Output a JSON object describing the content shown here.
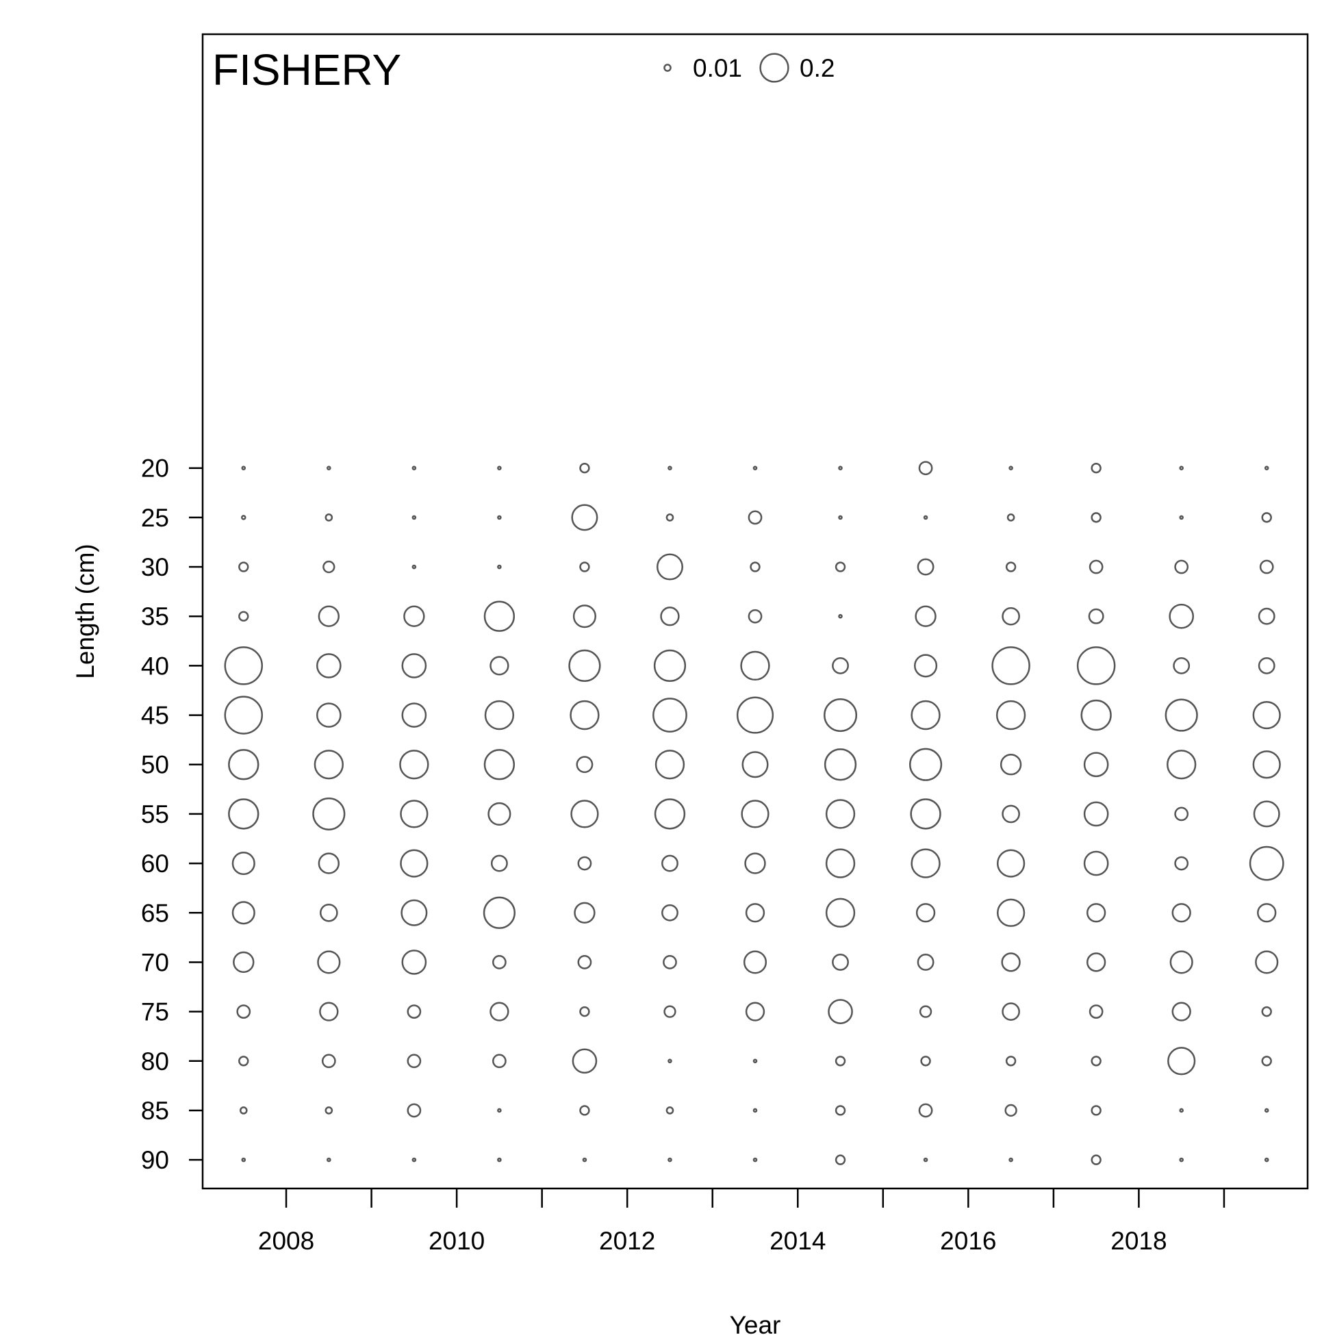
{
  "chart_data": {
    "type": "scatter",
    "panel_label": "FISHERY",
    "xlabel": "Year",
    "ylabel": "Length (cm)",
    "xlim": [
      2007.02,
      2019.98
    ],
    "ylim": [
      -92.9,
      23.9
    ],
    "x_ticks": [
      2008,
      2010,
      2012,
      2014,
      2016,
      2018
    ],
    "x_minor_ticks": [
      2009,
      2011,
      2013,
      2015,
      2017,
      2019
    ],
    "y_ticks": [
      20,
      25,
      30,
      35,
      40,
      45,
      50,
      55,
      60,
      65,
      70,
      75,
      80,
      85,
      90
    ],
    "grid": false,
    "legend": {
      "position": "top-center",
      "entries": [
        {
          "label": "0.01",
          "value": 0.01
        },
        {
          "label": "0.2",
          "value": 0.2
        }
      ]
    },
    "colors": {
      "bubble": "#555555",
      "axis": "#000000"
    },
    "years": [
      2007.5,
      2008.5,
      2009.5,
      2010.5,
      2011.5,
      2012.5,
      2013.5,
      2014.5,
      2015.5,
      2016.5,
      2017.5,
      2018.5,
      2019.5
    ],
    "lengths": [
      20,
      25,
      30,
      35,
      40,
      45,
      50,
      55,
      60,
      65,
      70,
      75,
      80,
      85,
      90
    ],
    "proportions": [
      [
        0.002,
        0.003,
        0.02,
        0.02,
        0.35,
        0.35,
        0.22,
        0.22,
        0.12,
        0.12,
        0.1,
        0.04,
        0.02,
        0.01,
        0.002
      ],
      [
        0.002,
        0.01,
        0.03,
        0.1,
        0.14,
        0.14,
        0.2,
        0.25,
        0.1,
        0.07,
        0.12,
        0.08,
        0.04,
        0.01,
        0.002
      ],
      [
        0.002,
        0.002,
        0.002,
        0.1,
        0.14,
        0.14,
        0.2,
        0.18,
        0.18,
        0.16,
        0.14,
        0.04,
        0.04,
        0.04,
        0.002
      ],
      [
        0.002,
        0.002,
        0.002,
        0.22,
        0.08,
        0.2,
        0.22,
        0.12,
        0.06,
        0.24,
        0.04,
        0.08,
        0.04,
        0.002,
        0.002
      ],
      [
        0.02,
        0.16,
        0.02,
        0.12,
        0.24,
        0.2,
        0.06,
        0.18,
        0.04,
        0.1,
        0.04,
        0.02,
        0.14,
        0.02,
        0.002
      ],
      [
        0.002,
        0.01,
        0.16,
        0.08,
        0.24,
        0.28,
        0.2,
        0.22,
        0.06,
        0.06,
        0.04,
        0.03,
        0.002,
        0.01,
        0.002
      ],
      [
        0.002,
        0.04,
        0.02,
        0.04,
        0.2,
        0.32,
        0.16,
        0.18,
        0.1,
        0.08,
        0.12,
        0.08,
        0.002,
        0.002,
        0.002
      ],
      [
        0.002,
        0.002,
        0.02,
        0.002,
        0.06,
        0.26,
        0.24,
        0.2,
        0.2,
        0.2,
        0.06,
        0.14,
        0.02,
        0.02,
        0.02
      ],
      [
        0.04,
        0.002,
        0.06,
        0.1,
        0.12,
        0.2,
        0.25,
        0.22,
        0.2,
        0.08,
        0.06,
        0.03,
        0.02,
        0.04,
        0.002
      ],
      [
        0.002,
        0.01,
        0.02,
        0.07,
        0.35,
        0.2,
        0.1,
        0.07,
        0.18,
        0.18,
        0.08,
        0.07,
        0.02,
        0.03,
        0.002
      ],
      [
        0.02,
        0.02,
        0.04,
        0.05,
        0.35,
        0.22,
        0.14,
        0.14,
        0.14,
        0.08,
        0.08,
        0.04,
        0.02,
        0.02,
        0.02
      ],
      [
        0.002,
        0.002,
        0.04,
        0.14,
        0.06,
        0.25,
        0.2,
        0.04,
        0.04,
        0.08,
        0.12,
        0.08,
        0.18,
        0.002,
        0.002
      ],
      [
        0.002,
        0.02,
        0.04,
        0.06,
        0.06,
        0.18,
        0.18,
        0.16,
        0.28,
        0.08,
        0.12,
        0.02,
        0.02,
        0.002,
        0.002
      ]
    ]
  }
}
